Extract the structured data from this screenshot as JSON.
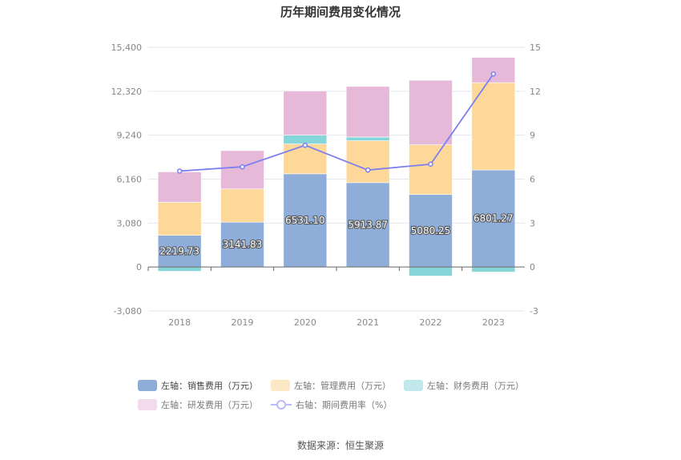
{
  "chart_data": {
    "type": "bar",
    "title": "历年期间费用变化情况",
    "source": "数据来源：恒生聚源",
    "categories": [
      "2018",
      "2019",
      "2020",
      "2021",
      "2022",
      "2023"
    ],
    "left_axis": {
      "ticks": [
        "15,400",
        "12,320",
        "9,240",
        "6,160",
        "3,080",
        "0",
        "-3,080"
      ],
      "ylim": [
        -3080,
        15400
      ]
    },
    "right_axis": {
      "ticks": [
        "15",
        "12",
        "9",
        "6",
        "3",
        "0",
        "-3"
      ],
      "ylim": [
        -3,
        15
      ]
    },
    "grid": true,
    "legend_placement": "bottom",
    "series": [
      {
        "name": "左轴：销售费用（万元）",
        "type": "bar",
        "stack": true,
        "color": "#8eadd9",
        "values": [
          2219.73,
          3141.83,
          6531.1,
          5913.87,
          5080.25,
          6801.27
        ],
        "show_labels": true
      },
      {
        "name": "左轴：管理费用（万元）",
        "type": "bar",
        "stack": true,
        "color": "#fed898",
        "legend_color": "#fde8c6",
        "values": [
          2317,
          2328,
          2094,
          2936,
          3489,
          6118
        ]
      },
      {
        "name": "左轴：财务费用（万元）",
        "type": "bar",
        "stack": true,
        "color": "#86d5d9",
        "legend_color": "#c1e9ec",
        "values": [
          -299,
          -20,
          616,
          261,
          -635,
          -355
        ]
      },
      {
        "name": "左轴：研发费用（万元）",
        "type": "bar",
        "stack": true,
        "color": "#e7b9d9",
        "legend_color": "#f1dbec",
        "values": [
          2128,
          2689,
          3100,
          3547,
          4519,
          1774
        ]
      },
      {
        "name": "右轴：期间费用率（%）",
        "type": "line",
        "axis": "right",
        "color": "#7b7ff0",
        "values": [
          6.55,
          6.84,
          8.31,
          6.62,
          7.02,
          13.18
        ]
      }
    ]
  }
}
